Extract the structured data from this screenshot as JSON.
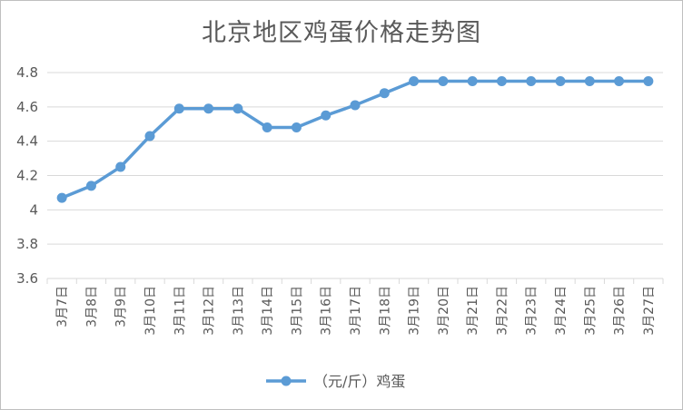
{
  "chart_data": {
    "type": "line",
    "title": "北京地区鸡蛋价格走势图",
    "categories": [
      "3月7日",
      "3月8日",
      "3月9日",
      "3月10日",
      "3月11日",
      "3月12日",
      "3月13日",
      "3月14日",
      "3月15日",
      "3月16日",
      "3月17日",
      "3月18日",
      "3月19日",
      "3月20日",
      "3月21日",
      "3月22日",
      "3月23日",
      "3月24日",
      "3月25日",
      "3月26日",
      "3月27日"
    ],
    "series": [
      {
        "name": "（元/斤）鸡蛋",
        "values": [
          4.07,
          4.14,
          4.25,
          4.43,
          4.59,
          4.59,
          4.59,
          4.48,
          4.48,
          4.55,
          4.61,
          4.68,
          4.75,
          4.75,
          4.75,
          4.75,
          4.75,
          4.75,
          4.75,
          4.75,
          4.75
        ]
      }
    ],
    "ylim": [
      3.6,
      4.8
    ],
    "yticks": [
      3.6,
      3.8,
      4,
      4.2,
      4.4,
      4.6,
      4.8
    ],
    "ytick_labels": [
      "3.6",
      "3.8",
      "4",
      "4.2",
      "4.4",
      "4.6",
      "4.8"
    ],
    "grid": true,
    "legend_position": "bottom",
    "colors": {
      "line": "#5b9bd5",
      "grid": "#d9d9d9",
      "axis_text": "#595959"
    }
  }
}
